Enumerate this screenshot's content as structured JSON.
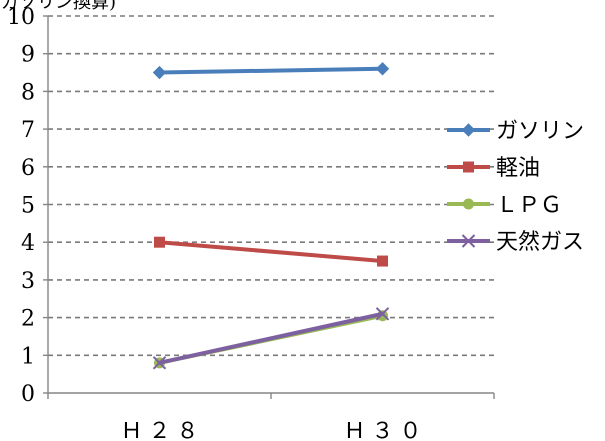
{
  "chart_data": {
    "type": "line",
    "title": "L(ガソリン換算)",
    "ylabel": "",
    "xlabel": "",
    "categories": [
      "Ｈ２８",
      "Ｈ３０"
    ],
    "ylim": [
      0,
      10
    ],
    "yticks": [
      0,
      1,
      2,
      3,
      4,
      5,
      6,
      7,
      8,
      9,
      10
    ],
    "grid": "horizontal dashed",
    "legend_position": "right",
    "series": [
      {
        "name": "ガソリン",
        "values": [
          8.5,
          8.6
        ],
        "color": "#4a7ebb",
        "marker": "diamond"
      },
      {
        "name": "軽油",
        "values": [
          4.0,
          3.5
        ],
        "color": "#be4b48",
        "marker": "square"
      },
      {
        "name": "ＬＰＧ",
        "values": [
          0.8,
          2.05
        ],
        "color": "#98b954",
        "marker": "circle"
      },
      {
        "name": "天然ガス",
        "values": [
          0.8,
          2.1
        ],
        "color": "#7d60a0",
        "marker": "x"
      }
    ]
  }
}
